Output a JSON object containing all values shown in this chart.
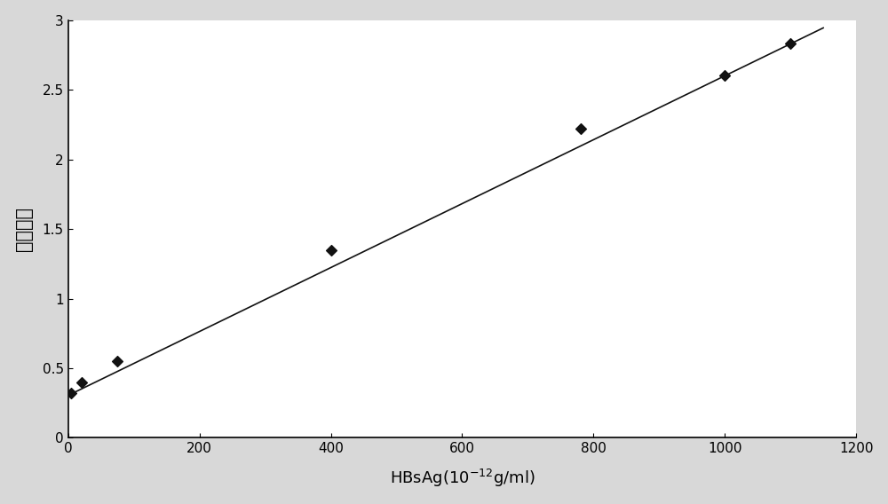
{
  "data_points_x": [
    5,
    20,
    75,
    400,
    780,
    1000,
    1100
  ],
  "data_points_y": [
    0.32,
    0.4,
    0.55,
    1.35,
    2.22,
    2.6,
    2.83
  ],
  "fit_slope": 0.002295,
  "fit_intercept": 0.305,
  "xlim": [
    0,
    1200
  ],
  "ylim": [
    0,
    3.0
  ],
  "xticks": [
    0,
    200,
    400,
    600,
    800,
    1000,
    1200
  ],
  "yticks": [
    0,
    0.5,
    1,
    1.5,
    2,
    2.5,
    3
  ],
  "ytick_labels": [
    "0",
    "0.5",
    "1",
    "1.5",
    "2",
    "2.5",
    "3"
  ],
  "xlabel_main": "HBsAg",
  "xlabel_super": "-12",
  "ylabel": "吸光度値",
  "marker_color": "#111111",
  "line_color": "#111111",
  "bg_color": "#ffffff",
  "fig_bg_color": "#d8d8d8",
  "marker_size": 6,
  "line_width": 1.2,
  "label_fontsize": 13,
  "tick_fontsize": 11
}
